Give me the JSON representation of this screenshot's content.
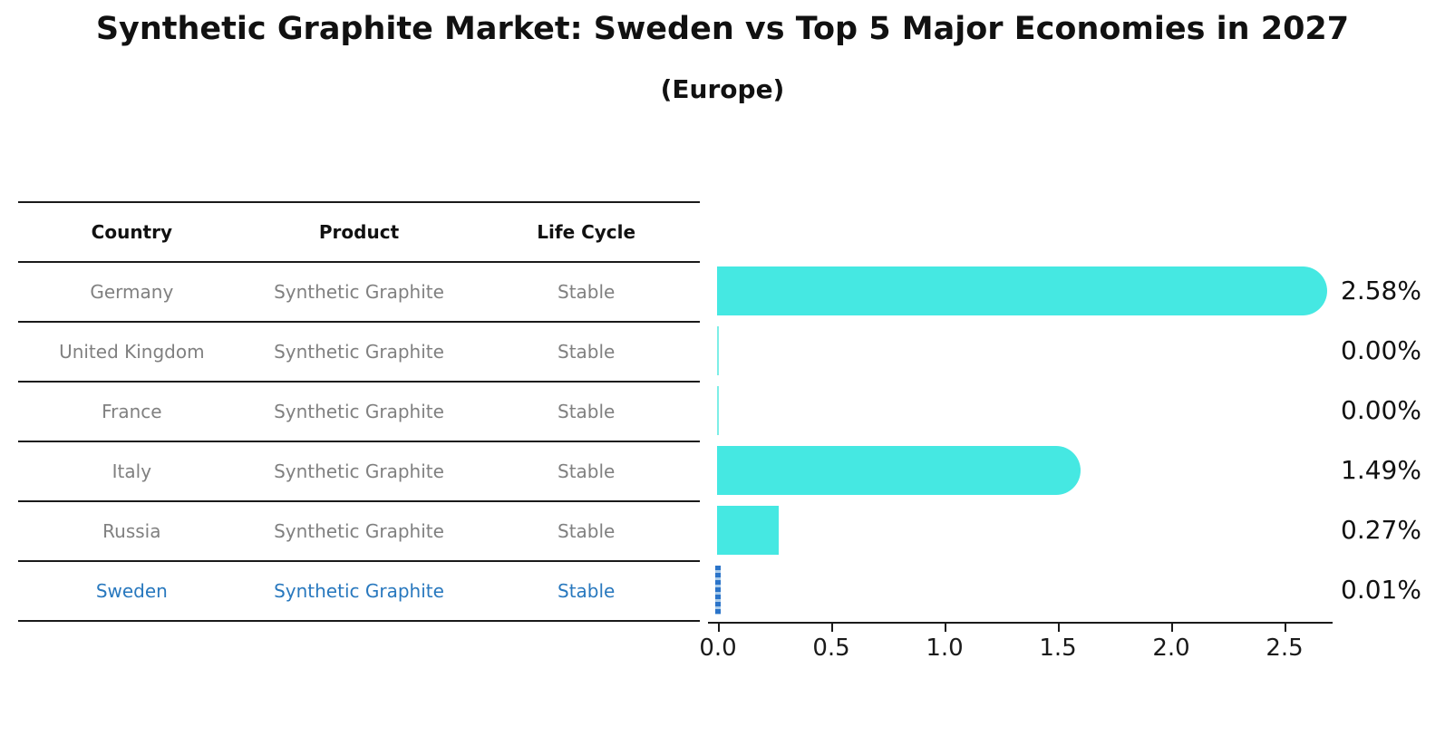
{
  "title": "Synthetic Graphite Market: Sweden vs Top 5 Major Economies in 2027",
  "subtitle": "(Europe)",
  "table": {
    "headers": [
      "Country",
      "Product",
      "Life Cycle"
    ],
    "rows": [
      {
        "country": "Germany",
        "product": "Synthetic Graphite",
        "life_cycle": "Stable",
        "highlight": false
      },
      {
        "country": "United Kingdom",
        "product": "Synthetic Graphite",
        "life_cycle": "Stable",
        "highlight": false
      },
      {
        "country": "France",
        "product": "Synthetic Graphite",
        "life_cycle": "Stable",
        "highlight": false
      },
      {
        "country": "Italy",
        "product": "Synthetic Graphite",
        "life_cycle": "Stable",
        "highlight": false
      },
      {
        "country": "Russia",
        "product": "Synthetic Graphite",
        "life_cycle": "Stable",
        "highlight": false
      },
      {
        "country": "Sweden",
        "product": "Synthetic Graphite",
        "life_cycle": "Stable",
        "highlight": true
      }
    ]
  },
  "chart_data": {
    "type": "bar",
    "orientation": "horizontal",
    "categories": [
      "Germany",
      "United Kingdom",
      "France",
      "Italy",
      "Russia",
      "Sweden"
    ],
    "values": [
      2.58,
      0.0,
      0.0,
      1.49,
      0.27,
      0.01
    ],
    "value_labels": [
      "2.58%",
      "0.00%",
      "0.00%",
      "1.49%",
      "0.27%",
      "0.01%"
    ],
    "value_unit": "%",
    "x_ticks": [
      "0.0",
      "0.5",
      "1.0",
      "1.5",
      "2.0",
      "2.5"
    ],
    "xlim": [
      0,
      2.75
    ],
    "grid": false,
    "legend": "none",
    "bar_color": "#45e8e2",
    "highlight_color": "#2b74c9",
    "highlight_index": 5,
    "highlighted_country": "Sweden"
  },
  "colors": {
    "title_text": "#111111",
    "table_text": "#808080",
    "table_line": "#1a1a1a",
    "highlight_text": "#2878be"
  }
}
